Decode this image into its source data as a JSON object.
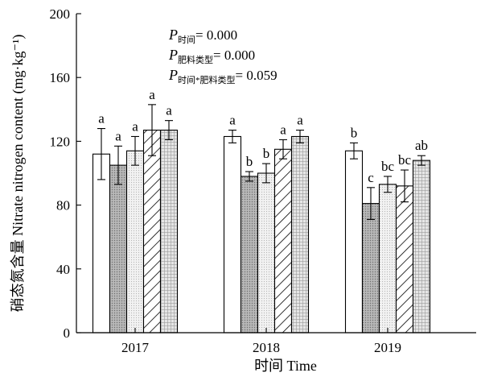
{
  "chart_data": {
    "type": "bar",
    "xlabel": "时间 Time",
    "ylabel": "硝态氮含量 Nitrate nitrogen content (mg·kg⁻¹)",
    "ylim": [
      0,
      200
    ],
    "yticks": [
      0,
      40,
      80,
      120,
      160,
      200
    ],
    "categories": [
      "2017",
      "2018",
      "2019"
    ],
    "series": [
      {
        "pattern": "white",
        "values": [
          112,
          123,
          114
        ],
        "errors": [
          16,
          4,
          5
        ],
        "labels": [
          "a",
          "a",
          "b"
        ]
      },
      {
        "pattern": "dense-dots",
        "values": [
          105,
          98,
          81
        ],
        "errors": [
          12,
          3,
          10
        ],
        "labels": [
          "a",
          "b",
          "c"
        ]
      },
      {
        "pattern": "light-dots",
        "values": [
          114,
          100,
          93
        ],
        "errors": [
          9,
          6,
          5
        ],
        "labels": [
          "a",
          "b",
          "bc"
        ]
      },
      {
        "pattern": "diagonal",
        "values": [
          127,
          115,
          92
        ],
        "errors": [
          16,
          6,
          10
        ],
        "labels": [
          "a",
          "a",
          "bc"
        ]
      },
      {
        "pattern": "crosshatch",
        "values": [
          127,
          123,
          108
        ],
        "errors": [
          6,
          4,
          3
        ],
        "labels": [
          "a",
          "a",
          "ab"
        ]
      }
    ],
    "stats": [
      {
        "p": "P",
        "sub": "时间",
        "eq": "= 0.000"
      },
      {
        "p": "P",
        "sub": "肥料类型",
        "eq": "= 0.000"
      },
      {
        "p": "P",
        "sub": "时间*肥料类型",
        "eq": "= 0.059"
      }
    ]
  }
}
